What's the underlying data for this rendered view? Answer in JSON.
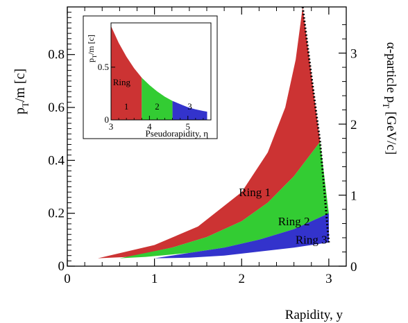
{
  "chart_data": [
    {
      "type": "area",
      "xlabel": "Rapidity, y",
      "ylabel": {
        "main": "p",
        "sub": "T",
        "rest": "/m [c]"
      },
      "y2label": {
        "main": "α-particle p",
        "sub": "T",
        "rest": " [GeV/c]"
      },
      "xlim": [
        0,
        3.2
      ],
      "ylim": [
        0,
        0.98
      ],
      "y2lim": [
        0,
        3.65
      ],
      "xticks": [
        0,
        1,
        2,
        3
      ],
      "xtick_labels": [
        "0",
        "1",
        "2",
        "3"
      ],
      "yticks": [
        0,
        0.2,
        0.4,
        0.6,
        0.8
      ],
      "ytick_labels": [
        "0",
        "0.2",
        "0.4",
        "0.6",
        "0.8"
      ],
      "y2ticks": [
        0,
        1,
        2,
        3
      ],
      "y2tick_labels": [
        "0",
        "1",
        "2",
        "3"
      ],
      "colors": {
        "ring1": "#cc3333",
        "ring2": "#33cc33",
        "ring3": "#3333cc"
      },
      "series": [
        {
          "name": "Ring 1",
          "label_at": [
            2.15,
            0.265
          ],
          "upper": {
            "x": [
              0.35,
              1.0,
              1.5,
              2.0,
              2.3,
              2.5,
              2.62,
              2.7
            ],
            "y": [
              0.03,
              0.08,
              0.15,
              0.28,
              0.43,
              0.6,
              0.78,
              0.98
            ]
          },
          "lower": {
            "x": [
              2.9,
              2.6,
              2.3,
              2.0,
              1.6,
              1.2,
              0.7,
              0.35
            ],
            "y": [
              0.47,
              0.34,
              0.24,
              0.17,
              0.11,
              0.07,
              0.035,
              0.03
            ]
          }
        },
        {
          "name": "Ring 2",
          "label_at": [
            2.6,
            0.155
          ],
          "upper": {
            "x": [
              0.6,
              1.2,
              1.6,
              2.0,
              2.3,
              2.6,
              2.9
            ],
            "y": [
              0.03,
              0.07,
              0.11,
              0.17,
              0.24,
              0.34,
              0.47
            ]
          },
          "lower": {
            "x": [
              3.0,
              2.6,
              2.2,
              1.8,
              1.4,
              0.9,
              0.6
            ],
            "y": [
              0.2,
              0.14,
              0.1,
              0.07,
              0.05,
              0.035,
              0.03
            ]
          }
        },
        {
          "name": "Ring 3",
          "label_at": [
            2.8,
            0.085
          ],
          "upper": {
            "x": [
              1.0,
              1.4,
              1.8,
              2.2,
              2.6,
              3.0
            ],
            "y": [
              0.03,
              0.05,
              0.07,
              0.1,
              0.14,
              0.2
            ]
          },
          "lower": {
            "x": [
              3.0,
              2.6,
              2.2,
              1.8,
              1.4,
              1.0
            ],
            "y": [
              0.09,
              0.07,
              0.055,
              0.04,
              0.032,
              0.03
            ]
          }
        }
      ],
      "boundary_line": {
        "style": "dotted",
        "x": [
          2.7,
          2.8,
          2.9,
          3.0
        ],
        "y": [
          0.98,
          0.72,
          0.47,
          0.09
        ]
      }
    },
    {
      "type": "area",
      "inset": true,
      "xlabel": "Pseudorapidity, η",
      "ylabel": {
        "main": "p",
        "sub": "T",
        "rest": "/m [c]"
      },
      "xlim": [
        3,
        5.6
      ],
      "ylim": [
        0,
        0.92
      ],
      "xticks": [
        3,
        4,
        5
      ],
      "xtick_labels": [
        "3",
        "4",
        "5"
      ],
      "yticks": [
        0,
        0.5
      ],
      "ytick_labels": [
        "0",
        "0.5"
      ],
      "curve": {
        "x": [
          3.0,
          3.2,
          3.4,
          3.6,
          3.8,
          4.0,
          4.2,
          4.4,
          4.6,
          4.8,
          5.0,
          5.2,
          5.4,
          5.5
        ],
        "y": [
          0.89,
          0.73,
          0.6,
          0.49,
          0.4,
          0.33,
          0.27,
          0.22,
          0.18,
          0.15,
          0.12,
          0.1,
          0.085,
          0.078
        ]
      },
      "series": [
        {
          "name": "Ring 1",
          "range": [
            3.0,
            3.8
          ]
        },
        {
          "name": "Ring 2",
          "range": [
            3.8,
            4.6
          ]
        },
        {
          "name": "Ring 3",
          "range": [
            4.6,
            5.5
          ]
        }
      ],
      "annotations": [
        {
          "text": "Ring",
          "at": [
            3.05,
            0.33
          ]
        },
        {
          "text": "1",
          "at": [
            3.4,
            0.1
          ]
        },
        {
          "text": "2",
          "at": [
            4.2,
            0.1
          ]
        },
        {
          "text": "3",
          "at": [
            5.05,
            0.1
          ]
        }
      ]
    }
  ]
}
